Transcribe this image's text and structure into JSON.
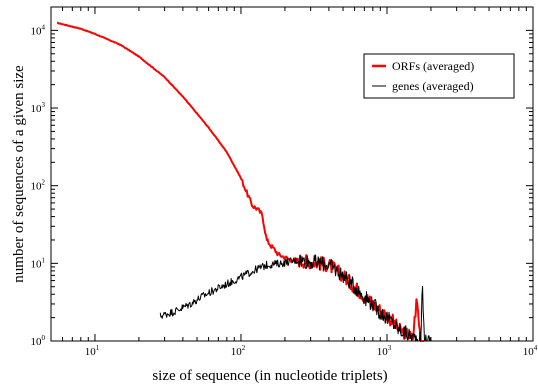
{
  "chart_data": {
    "type": "line",
    "title": "",
    "xlabel": "size of sequence (in nucleotide triplets)",
    "ylabel": "number of sequences of a given size",
    "xscale": "log",
    "yscale": "log",
    "xlim": [
      5,
      10000
    ],
    "ylim": [
      1,
      20000
    ],
    "grid": false,
    "legend_position": "top-right",
    "x_ticks": [
      {
        "base": "10",
        "exp": "1"
      },
      {
        "base": "10",
        "exp": "2"
      },
      {
        "base": "10",
        "exp": "3"
      },
      {
        "base": "10",
        "exp": "4"
      }
    ],
    "y_ticks": [
      {
        "base": "10",
        "exp": "0"
      },
      {
        "base": "10",
        "exp": "1"
      },
      {
        "base": "10",
        "exp": "2"
      },
      {
        "base": "10",
        "exp": "3"
      },
      {
        "base": "10",
        "exp": "4"
      }
    ],
    "series": [
      {
        "name": "ORFs (averaged)",
        "color": "#ff0000",
        "x": [
          5.5,
          8,
          10,
          15,
          20,
          30,
          40,
          50,
          60,
          70,
          80,
          90,
          100,
          110,
          120,
          130,
          140,
          150,
          160,
          170,
          180,
          200,
          220,
          250,
          300,
          350,
          400,
          500,
          600,
          700,
          800,
          900,
          1000,
          1100,
          1200,
          1300,
          1400,
          1500,
          1600,
          1700,
          1800
        ],
        "y": [
          12500,
          10500,
          9000,
          6500,
          4600,
          2500,
          1400,
          850,
          560,
          380,
          270,
          180,
          125,
          80,
          55,
          50,
          42,
          20,
          17,
          15,
          13,
          12,
          11,
          11,
          10.5,
          10,
          9.5,
          7,
          5,
          3.8,
          3,
          2.5,
          2.1,
          1.8,
          1.4,
          1.3,
          1.2,
          1.05,
          3.5,
          1.05,
          1.0
        ]
      },
      {
        "name": "genes (averaged)",
        "color": "#000000",
        "x": [
          28,
          35,
          45,
          55,
          70,
          90,
          110,
          130,
          150,
          170,
          190,
          210,
          250,
          300,
          350,
          400,
          500,
          600,
          700,
          800,
          900,
          1000,
          1100,
          1200,
          1300,
          1400,
          1500,
          1700,
          1750,
          1800,
          1900,
          2000
        ],
        "y": [
          2.1,
          2.4,
          3.0,
          3.8,
          4.8,
          6.0,
          7.3,
          8.5,
          9.5,
          9.8,
          10,
          10.5,
          11,
          10.5,
          10,
          9.5,
          7,
          5.0,
          3.7,
          3.0,
          2.3,
          2.0,
          1.7,
          1.4,
          1.3,
          1.2,
          1.1,
          1.05,
          5.0,
          1.05,
          1.0,
          1.0
        ]
      }
    ]
  }
}
